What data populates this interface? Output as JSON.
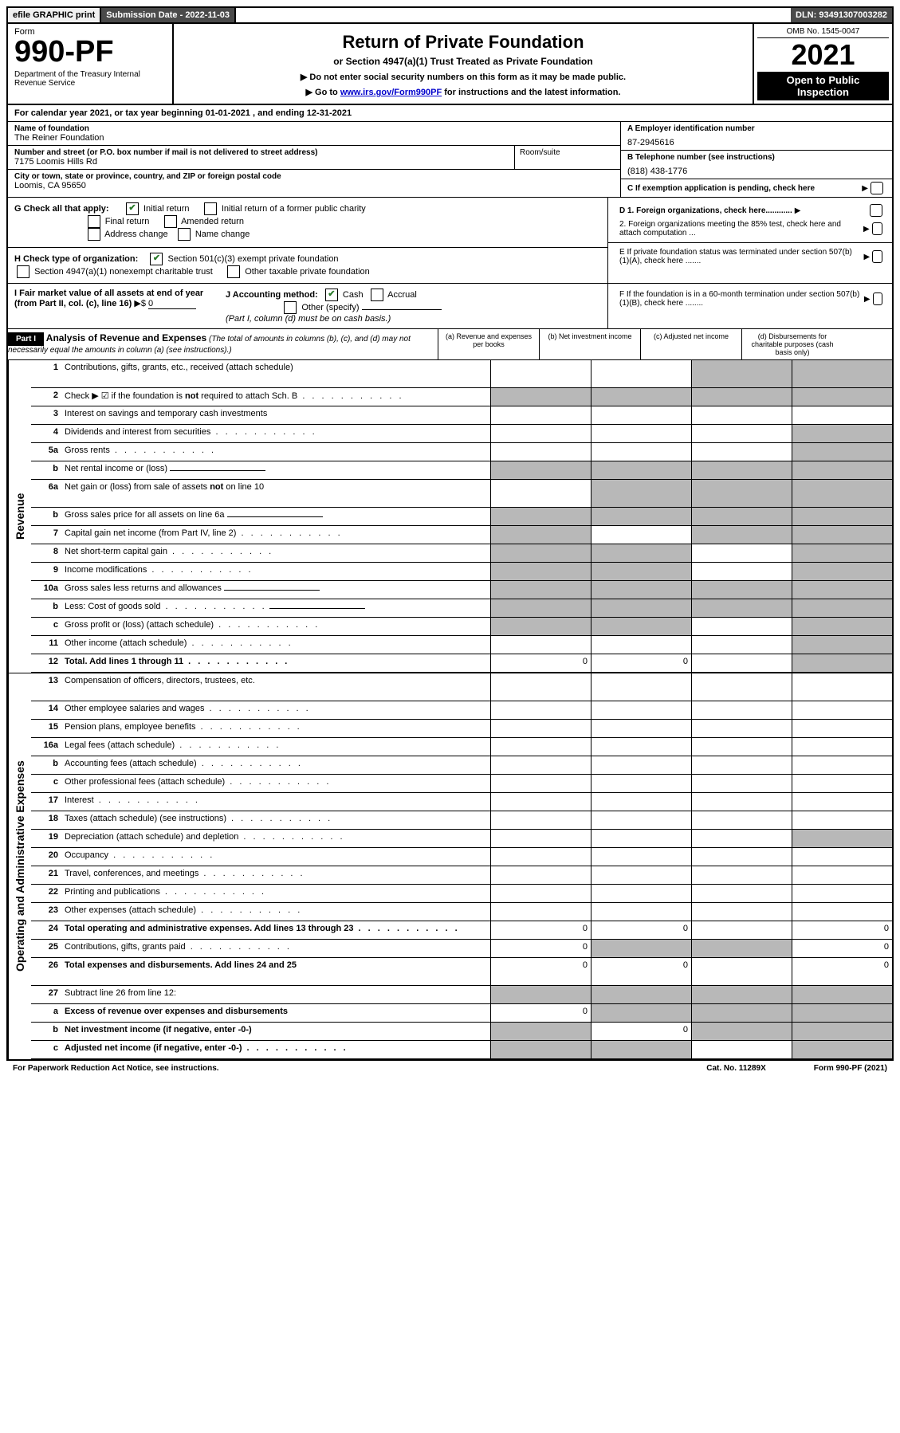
{
  "topbar": {
    "efile": "efile GRAPHIC print",
    "sub_date": "Submission Date - 2022-11-03",
    "dln": "DLN: 93491307003282"
  },
  "header": {
    "form_label": "Form",
    "form_num": "990-PF",
    "dept": "Department of the Treasury\nInternal Revenue Service",
    "title": "Return of Private Foundation",
    "subtitle": "or Section 4947(a)(1) Trust Treated as Private Foundation",
    "instr1": "▶ Do not enter social security numbers on this form as it may be made public.",
    "instr2_pre": "▶ Go to ",
    "instr2_link": "www.irs.gov/Form990PF",
    "instr2_post": " for instructions and the latest information.",
    "omb": "OMB No. 1545-0047",
    "year": "2021",
    "open": "Open to Public Inspection"
  },
  "calyear": "For calendar year 2021, or tax year beginning 01-01-2021          , and ending 12-31-2021",
  "entity": {
    "name_label": "Name of foundation",
    "name": "The Reiner Foundation",
    "addr_label": "Number and street (or P.O. box number if mail is not delivered to street address)",
    "addr": "7175 Loomis Hills Rd",
    "room_label": "Room/suite",
    "city_label": "City or town, state or province, country, and ZIP or foreign postal code",
    "city": "Loomis, CA  95650",
    "ein_label": "A Employer identification number",
    "ein": "87-2945616",
    "phone_label": "B Telephone number (see instructions)",
    "phone": "(818) 438-1776",
    "pending_label": "C If exemption application is pending, check here"
  },
  "g": {
    "label": "G Check all that apply:",
    "initial": "Initial return",
    "initial_former": "Initial return of a former public charity",
    "final": "Final return",
    "amended": "Amended return",
    "addr_change": "Address change",
    "name_change": "Name change"
  },
  "h": {
    "label": "H Check type of organization:",
    "sec501": "Section 501(c)(3) exempt private foundation",
    "sec4947": "Section 4947(a)(1) nonexempt charitable trust",
    "other_tax": "Other taxable private foundation"
  },
  "i": {
    "label": "I Fair market value of all assets at end of year (from Part II, col. (c), line 16)",
    "value": "0"
  },
  "j": {
    "label": "J Accounting method:",
    "cash": "Cash",
    "accrual": "Accrual",
    "other": "Other (specify)",
    "note": "(Part I, column (d) must be on cash basis.)"
  },
  "d_section": {
    "d1": "D 1. Foreign organizations, check here............",
    "d2": "2. Foreign organizations meeting the 85% test, check here and attach computation ...",
    "e": "E  If private foundation status was terminated under section 507(b)(1)(A), check here .......",
    "f": "F  If the foundation is in a 60-month termination under section 507(b)(1)(B), check here ........"
  },
  "part1": {
    "label": "Part I",
    "title": "Analysis of Revenue and Expenses",
    "note": "(The total of amounts in columns (b), (c), and (d) may not necessarily equal the amounts in column (a) (see instructions).)",
    "cols": {
      "a": "(a)  Revenue and expenses per books",
      "b": "(b)  Net investment income",
      "c": "(c)  Adjusted net income",
      "d": "(d)  Disbursements for charitable purposes (cash basis only)"
    }
  },
  "side": {
    "revenue": "Revenue",
    "expenses": "Operating and Administrative Expenses"
  },
  "rows": [
    {
      "n": "1",
      "t": "Contributions, gifts, grants, etc., received (attach schedule)",
      "g": [
        "",
        "",
        "d",
        "d"
      ]
    },
    {
      "n": "2",
      "t": "Check ▶ ☑ if the foundation is not required to attach Sch. B",
      "dots": true,
      "g": [
        "a",
        "b",
        "c",
        "d"
      ]
    },
    {
      "n": "3",
      "t": "Interest on savings and temporary cash investments",
      "g": [
        "",
        "",
        "",
        ""
      ]
    },
    {
      "n": "4",
      "t": "Dividends and interest from securities",
      "dots": true,
      "g": [
        "",
        "",
        "",
        "d"
      ]
    },
    {
      "n": "5a",
      "t": "Gross rents",
      "dots": true,
      "g": [
        "",
        "",
        "",
        "d"
      ]
    },
    {
      "n": "b",
      "t": "Net rental income or (loss)",
      "uline": true,
      "g": [
        "a",
        "b",
        "c",
        "d"
      ]
    },
    {
      "n": "6a",
      "t": "Net gain or (loss) from sale of assets not on line 10",
      "g": [
        "",
        "b",
        "c",
        "d"
      ]
    },
    {
      "n": "b",
      "t": "Gross sales price for all assets on line 6a",
      "uline": true,
      "g": [
        "a",
        "b",
        "c",
        "d"
      ]
    },
    {
      "n": "7",
      "t": "Capital gain net income (from Part IV, line 2)",
      "dots": true,
      "g": [
        "a",
        "",
        "c",
        "d"
      ]
    },
    {
      "n": "8",
      "t": "Net short-term capital gain",
      "dots": true,
      "g": [
        "a",
        "b",
        "",
        "d"
      ]
    },
    {
      "n": "9",
      "t": "Income modifications",
      "dots": true,
      "g": [
        "a",
        "b",
        "",
        "d"
      ]
    },
    {
      "n": "10a",
      "t": "Gross sales less returns and allowances",
      "uline": true,
      "g": [
        "a",
        "b",
        "c",
        "d"
      ]
    },
    {
      "n": "b",
      "t": "Less: Cost of goods sold",
      "dots": true,
      "uline": true,
      "g": [
        "a",
        "b",
        "c",
        "d"
      ]
    },
    {
      "n": "c",
      "t": "Gross profit or (loss) (attach schedule)",
      "dots": true,
      "g": [
        "a",
        "b",
        "",
        "d"
      ]
    },
    {
      "n": "11",
      "t": "Other income (attach schedule)",
      "dots": true,
      "g": [
        "",
        "",
        "",
        "d"
      ]
    },
    {
      "n": "12",
      "t": "Total. Add lines 1 through 11",
      "bold": true,
      "dots": true,
      "g": [
        "",
        "",
        "",
        "d"
      ],
      "v": {
        "a": "0",
        "b": "0"
      }
    }
  ],
  "exp_rows": [
    {
      "n": "13",
      "t": "Compensation of officers, directors, trustees, etc.",
      "g": [
        "",
        "",
        "",
        ""
      ]
    },
    {
      "n": "14",
      "t": "Other employee salaries and wages",
      "dots": true,
      "g": [
        "",
        "",
        "",
        ""
      ]
    },
    {
      "n": "15",
      "t": "Pension plans, employee benefits",
      "dots": true,
      "g": [
        "",
        "",
        "",
        ""
      ]
    },
    {
      "n": "16a",
      "t": "Legal fees (attach schedule)",
      "dots": true,
      "g": [
        "",
        "",
        "",
        ""
      ]
    },
    {
      "n": "b",
      "t": "Accounting fees (attach schedule)",
      "dots": true,
      "g": [
        "",
        "",
        "",
        ""
      ]
    },
    {
      "n": "c",
      "t": "Other professional fees (attach schedule)",
      "dots": true,
      "g": [
        "",
        "",
        "",
        ""
      ]
    },
    {
      "n": "17",
      "t": "Interest",
      "dots": true,
      "g": [
        "",
        "",
        "",
        ""
      ]
    },
    {
      "n": "18",
      "t": "Taxes (attach schedule) (see instructions)",
      "dots": true,
      "g": [
        "",
        "",
        "",
        ""
      ]
    },
    {
      "n": "19",
      "t": "Depreciation (attach schedule) and depletion",
      "dots": true,
      "g": [
        "",
        "",
        "",
        "d"
      ]
    },
    {
      "n": "20",
      "t": "Occupancy",
      "dots": true,
      "g": [
        "",
        "",
        "",
        ""
      ]
    },
    {
      "n": "21",
      "t": "Travel, conferences, and meetings",
      "dots": true,
      "g": [
        "",
        "",
        "",
        ""
      ]
    },
    {
      "n": "22",
      "t": "Printing and publications",
      "dots": true,
      "g": [
        "",
        "",
        "",
        ""
      ]
    },
    {
      "n": "23",
      "t": "Other expenses (attach schedule)",
      "dots": true,
      "g": [
        "",
        "",
        "",
        ""
      ]
    },
    {
      "n": "24",
      "t": "Total operating and administrative expenses. Add lines 13 through 23",
      "bold": true,
      "dots": true,
      "g": [
        "",
        "",
        "",
        ""
      ],
      "v": {
        "a": "0",
        "b": "0",
        "d": "0"
      }
    },
    {
      "n": "25",
      "t": "Contributions, gifts, grants paid",
      "dots": true,
      "g": [
        "",
        "b",
        "c",
        ""
      ],
      "v": {
        "a": "0",
        "d": "0"
      }
    },
    {
      "n": "26",
      "t": "Total expenses and disbursements. Add lines 24 and 25",
      "bold": true,
      "g": [
        "",
        "",
        "",
        ""
      ],
      "v": {
        "a": "0",
        "b": "0",
        "d": "0"
      }
    },
    {
      "n": "27",
      "t": "Subtract line 26 from line 12:",
      "g": [
        "a",
        "b",
        "c",
        "d"
      ]
    },
    {
      "n": "a",
      "t": "Excess of revenue over expenses and disbursements",
      "bold": true,
      "g": [
        "",
        "b",
        "c",
        "d"
      ],
      "v": {
        "a": "0"
      }
    },
    {
      "n": "b",
      "t": "Net investment income (if negative, enter -0-)",
      "bold": true,
      "g": [
        "a",
        "",
        "c",
        "d"
      ],
      "v": {
        "b": "0"
      }
    },
    {
      "n": "c",
      "t": "Adjusted net income (if negative, enter -0-)",
      "bold": true,
      "dots": true,
      "g": [
        "a",
        "b",
        "",
        "d"
      ]
    }
  ],
  "footer": {
    "left": "For Paperwork Reduction Act Notice, see instructions.",
    "mid": "Cat. No. 11289X",
    "right": "Form 990-PF (2021)"
  }
}
